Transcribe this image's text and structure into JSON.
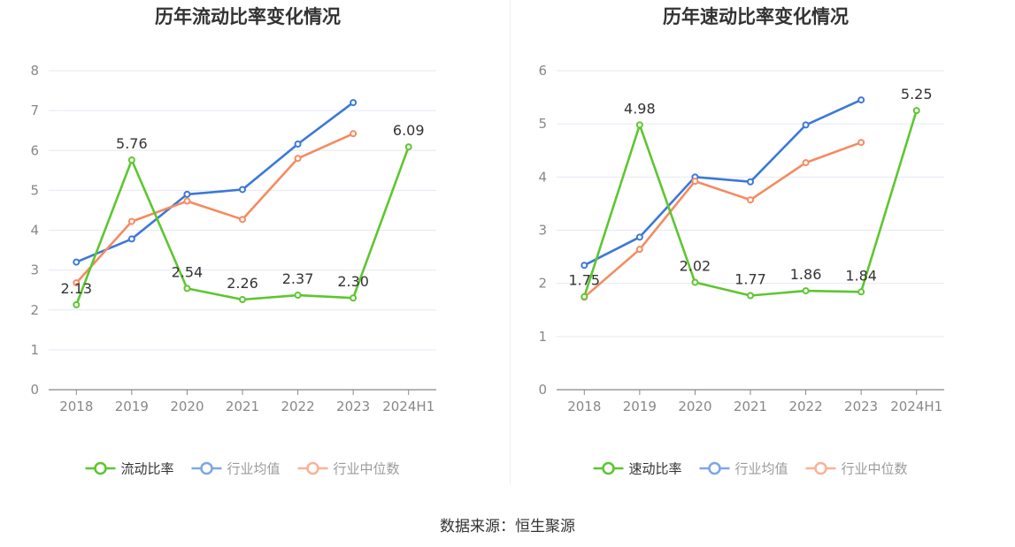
{
  "colors": {
    "primary": "#5ec630",
    "average": "#3c78d8",
    "median": "#f48b61",
    "grid": "#e6e8f4",
    "axis": "#888888",
    "tick_text": "#888888",
    "title": "#333333"
  },
  "chart_data": [
    {
      "type": "line",
      "title": "历年流动比率变化情况",
      "categories": [
        "2018",
        "2019",
        "2020",
        "2021",
        "2022",
        "2023",
        "2024H1"
      ],
      "ylim": [
        0,
        8
      ],
      "yticks": [
        "0",
        "1",
        "2",
        "3",
        "4",
        "5",
        "6",
        "7",
        "8"
      ],
      "grid": true,
      "legend_position": "bottom-center",
      "series": [
        {
          "name": "流动比率",
          "values": [
            2.13,
            5.76,
            2.54,
            2.26,
            2.37,
            2.3,
            6.09
          ],
          "labels": [
            "2.13",
            "5.76",
            "2.54",
            "2.26",
            "2.37",
            "2.30",
            "6.09"
          ]
        },
        {
          "name": "行业均值",
          "values": [
            3.2,
            3.78,
            4.9,
            5.02,
            6.16,
            7.2,
            null
          ]
        },
        {
          "name": "行业中位数",
          "values": [
            2.68,
            4.22,
            4.73,
            4.27,
            5.8,
            6.42,
            null
          ]
        }
      ]
    },
    {
      "type": "line",
      "title": "历年速动比率变化情况",
      "categories": [
        "2018",
        "2019",
        "2020",
        "2021",
        "2022",
        "2023",
        "2024H1"
      ],
      "ylim": [
        0,
        6
      ],
      "yticks": [
        "0",
        "1",
        "2",
        "3",
        "4",
        "5",
        "6"
      ],
      "grid": true,
      "legend_position": "bottom-center",
      "series": [
        {
          "name": "速动比率",
          "values": [
            1.75,
            4.98,
            2.02,
            1.77,
            1.86,
            1.84,
            5.25
          ],
          "labels": [
            "1.75",
            "4.98",
            "2.02",
            "1.77",
            "1.86",
            "1.84",
            "5.25"
          ]
        },
        {
          "name": "行业均值",
          "values": [
            2.34,
            2.87,
            4.0,
            3.91,
            4.98,
            5.45,
            null
          ]
        },
        {
          "name": "行业中位数",
          "values": [
            1.74,
            2.64,
            3.92,
            3.57,
            4.27,
            4.65,
            null
          ]
        }
      ]
    }
  ],
  "source": "数据来源：恒生聚源"
}
